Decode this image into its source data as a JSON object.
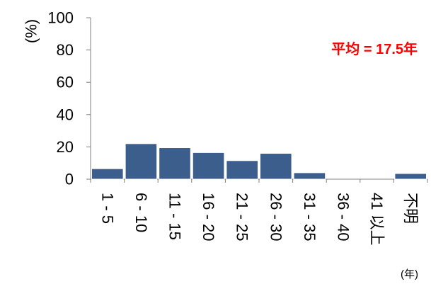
{
  "chart_data": {
    "type": "bar",
    "categories": [
      "1 - 5",
      "6 - 10",
      "11 - 15",
      "16 - 20",
      "21 - 25",
      "26 - 30",
      "31 - 35",
      "36 - 40",
      "41 以上",
      "不明"
    ],
    "values": [
      6.5,
      22,
      19.5,
      16.5,
      11.5,
      16,
      4,
      0,
      0,
      3.5
    ],
    "ylim": [
      0,
      100
    ],
    "yticks": [
      0,
      20,
      40,
      60,
      80,
      100
    ],
    "ylabel": "(%)",
    "xlabel": "(年)",
    "annotation": "平均 = 17.5年",
    "grid": false,
    "colors": {
      "bar": "#3b5e8c",
      "bar_edge": "#ffffff",
      "annotation": "#ff0000",
      "axis": "#808080"
    }
  }
}
